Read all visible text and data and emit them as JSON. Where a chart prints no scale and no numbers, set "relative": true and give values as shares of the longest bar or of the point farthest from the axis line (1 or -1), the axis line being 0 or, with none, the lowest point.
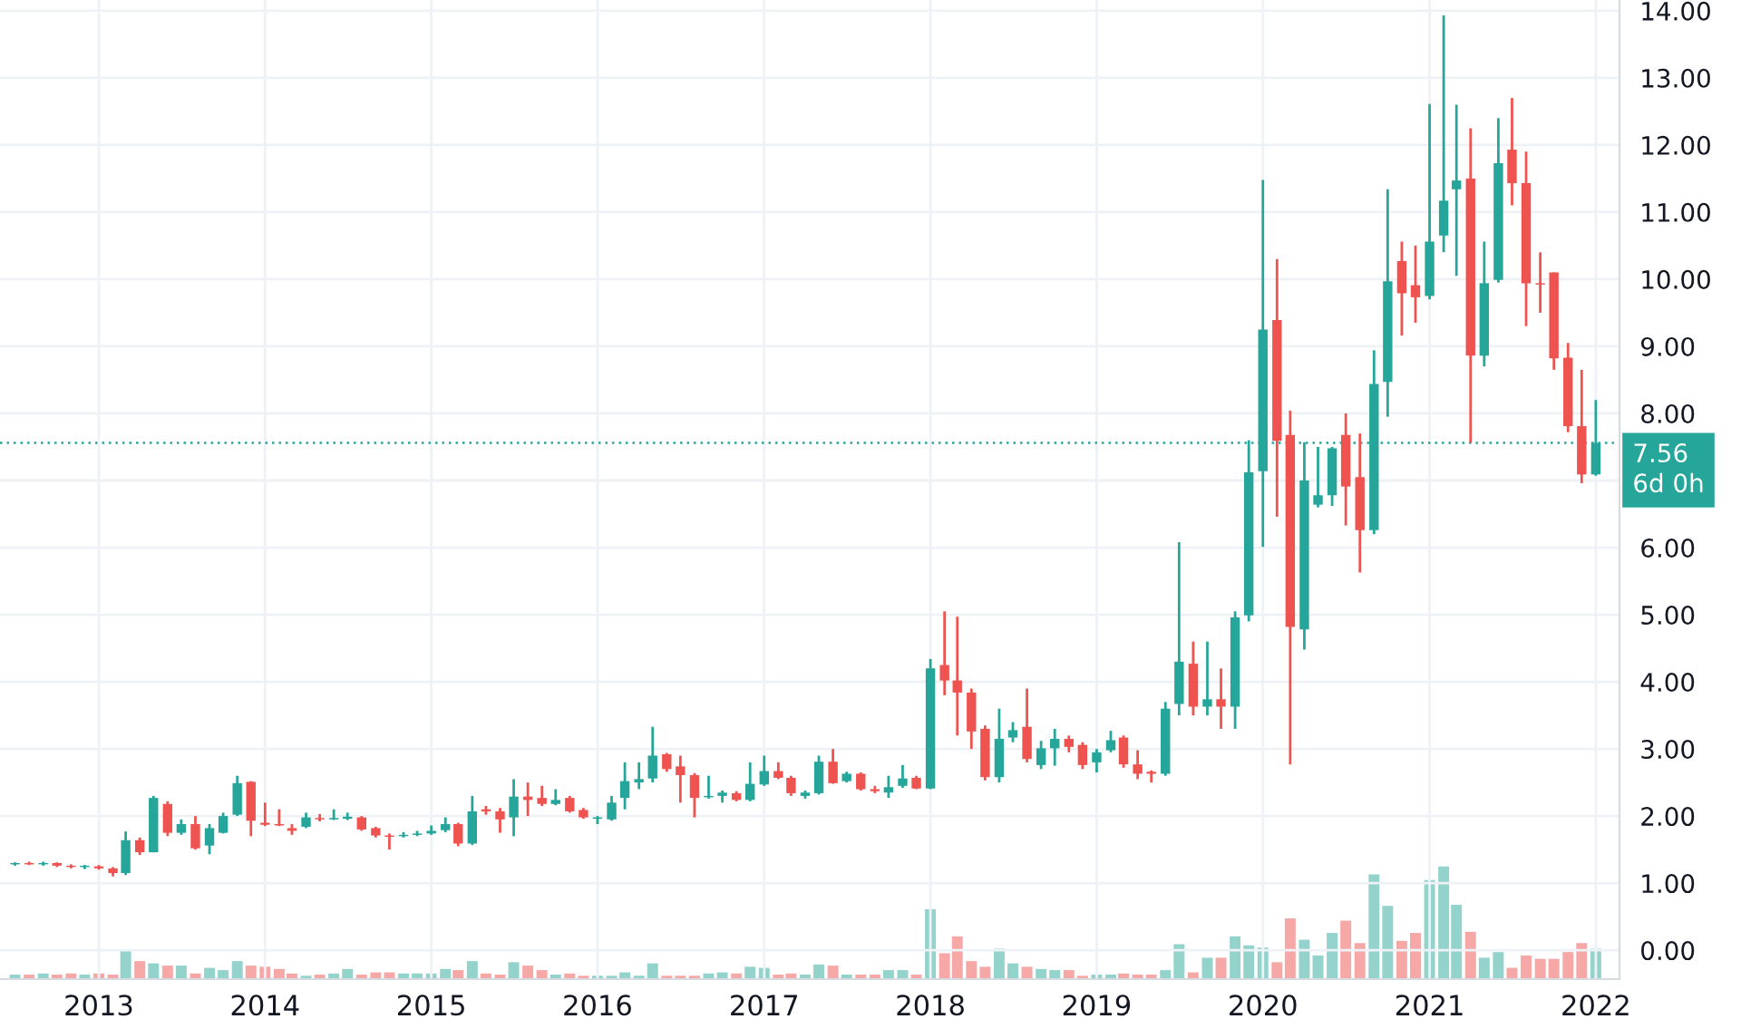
{
  "chart_data": [
    {
      "type": "candlestick",
      "grid": true,
      "x": [
        "2012-07",
        "2012-08",
        "2012-09",
        "2012-10",
        "2012-11",
        "2012-12",
        "2013-01",
        "2013-02",
        "2013-03",
        "2013-04",
        "2013-05",
        "2013-06",
        "2013-07",
        "2013-08",
        "2013-09",
        "2013-10",
        "2013-11",
        "2013-12",
        "2014-01",
        "2014-02",
        "2014-03",
        "2014-04",
        "2014-05",
        "2014-06",
        "2014-07",
        "2014-08",
        "2014-09",
        "2014-10",
        "2014-11",
        "2014-12",
        "2015-01",
        "2015-02",
        "2015-03",
        "2015-04",
        "2015-05",
        "2015-06",
        "2015-07",
        "2015-08",
        "2015-09",
        "2015-10",
        "2015-11",
        "2015-12",
        "2016-01",
        "2016-02",
        "2016-03",
        "2016-04",
        "2016-05",
        "2016-06",
        "2016-07",
        "2016-08",
        "2016-09",
        "2016-10",
        "2016-11",
        "2016-12",
        "2017-01",
        "2017-02",
        "2017-03",
        "2017-04",
        "2017-05",
        "2017-06",
        "2017-07",
        "2017-08",
        "2017-09",
        "2017-10",
        "2017-11",
        "2017-12",
        "2018-01",
        "2018-02",
        "2018-03",
        "2018-04",
        "2018-05",
        "2018-06",
        "2018-07",
        "2018-08",
        "2018-09",
        "2018-10",
        "2018-11",
        "2018-12",
        "2019-01",
        "2019-02",
        "2019-03",
        "2019-04",
        "2019-05",
        "2019-06",
        "2019-07",
        "2019-08",
        "2019-09",
        "2019-10",
        "2019-11",
        "2019-12",
        "2020-01",
        "2020-02",
        "2020-03",
        "2020-04",
        "2020-05",
        "2020-06",
        "2020-07",
        "2020-08",
        "2020-09",
        "2020-10",
        "2020-11",
        "2020-12",
        "2021-01",
        "2021-02",
        "2021-03",
        "2021-04",
        "2021-05",
        "2021-06",
        "2021-07",
        "2021-08",
        "2021-09",
        "2021-10",
        "2021-11",
        "2021-12",
        "2022-01"
      ],
      "ohlc": [
        [
          1.28,
          1.31,
          1.26,
          1.3
        ],
        [
          1.3,
          1.32,
          1.27,
          1.28
        ],
        [
          1.28,
          1.32,
          1.26,
          1.3
        ],
        [
          1.3,
          1.31,
          1.24,
          1.26
        ],
        [
          1.26,
          1.28,
          1.22,
          1.24
        ],
        [
          1.24,
          1.27,
          1.21,
          1.25
        ],
        [
          1.25,
          1.27,
          1.2,
          1.22
        ],
        [
          1.22,
          1.24,
          1.1,
          1.15
        ],
        [
          1.15,
          1.77,
          1.12,
          1.64
        ],
        [
          1.64,
          1.68,
          1.42,
          1.46
        ],
        [
          1.46,
          2.3,
          1.46,
          2.27
        ],
        [
          2.18,
          2.22,
          1.7,
          1.75
        ],
        [
          1.75,
          1.95,
          1.72,
          1.88
        ],
        [
          1.88,
          2.0,
          1.5,
          1.52
        ],
        [
          1.56,
          1.88,
          1.43,
          1.82
        ],
        [
          1.75,
          2.05,
          1.74,
          2.0
        ],
        [
          2.02,
          2.6,
          2.0,
          2.49
        ],
        [
          2.51,
          2.52,
          1.7,
          1.93
        ],
        [
          1.9,
          2.2,
          1.85,
          1.87
        ],
        [
          1.88,
          2.1,
          1.85,
          1.86
        ],
        [
          1.82,
          1.88,
          1.72,
          1.78
        ],
        [
          1.84,
          2.05,
          1.82,
          1.98
        ],
        [
          1.97,
          2.03,
          1.92,
          1.95
        ],
        [
          1.95,
          2.1,
          1.94,
          1.97
        ],
        [
          1.96,
          2.05,
          1.94,
          1.99
        ],
        [
          1.98,
          2.0,
          1.78,
          1.8
        ],
        [
          1.82,
          1.84,
          1.68,
          1.71
        ],
        [
          1.71,
          1.74,
          1.5,
          1.69
        ],
        [
          1.7,
          1.76,
          1.68,
          1.72
        ],
        [
          1.72,
          1.78,
          1.7,
          1.74
        ],
        [
          1.74,
          1.86,
          1.72,
          1.78
        ],
        [
          1.79,
          1.98,
          1.76,
          1.88
        ],
        [
          1.88,
          1.9,
          1.55,
          1.59
        ],
        [
          1.59,
          2.3,
          1.57,
          2.07
        ],
        [
          2.1,
          2.15,
          2.02,
          2.07
        ],
        [
          2.07,
          2.12,
          1.75,
          1.95
        ],
        [
          1.98,
          2.55,
          1.7,
          2.29
        ],
        [
          2.29,
          2.5,
          2.0,
          2.24
        ],
        [
          2.27,
          2.45,
          2.15,
          2.18
        ],
        [
          2.18,
          2.4,
          2.16,
          2.24
        ],
        [
          2.27,
          2.3,
          2.05,
          2.07
        ],
        [
          2.09,
          2.12,
          1.96,
          1.98
        ],
        [
          1.96,
          2.0,
          1.88,
          1.97
        ],
        [
          1.95,
          2.3,
          1.93,
          2.2
        ],
        [
          2.27,
          2.8,
          2.1,
          2.52
        ],
        [
          2.5,
          2.8,
          2.4,
          2.55
        ],
        [
          2.56,
          3.33,
          2.5,
          2.9
        ],
        [
          2.92,
          2.94,
          2.66,
          2.7
        ],
        [
          2.74,
          2.9,
          2.2,
          2.61
        ],
        [
          2.61,
          2.64,
          1.98,
          2.27
        ],
        [
          2.28,
          2.6,
          2.26,
          2.3
        ],
        [
          2.3,
          2.38,
          2.2,
          2.35
        ],
        [
          2.34,
          2.37,
          2.22,
          2.24
        ],
        [
          2.24,
          2.8,
          2.22,
          2.48
        ],
        [
          2.47,
          2.9,
          2.45,
          2.67
        ],
        [
          2.67,
          2.8,
          2.55,
          2.57
        ],
        [
          2.57,
          2.6,
          2.3,
          2.34
        ],
        [
          2.3,
          2.38,
          2.26,
          2.35
        ],
        [
          2.34,
          2.9,
          2.32,
          2.81
        ],
        [
          2.81,
          3.0,
          2.48,
          2.49
        ],
        [
          2.52,
          2.66,
          2.5,
          2.63
        ],
        [
          2.63,
          2.65,
          2.38,
          2.4
        ],
        [
          2.4,
          2.45,
          2.34,
          2.37
        ],
        [
          2.35,
          2.6,
          2.27,
          2.43
        ],
        [
          2.45,
          2.76,
          2.42,
          2.56
        ],
        [
          2.57,
          2.6,
          2.4,
          2.41
        ],
        [
          2.41,
          4.34,
          2.4,
          4.2
        ],
        [
          4.25,
          5.05,
          3.8,
          4.02
        ],
        [
          4.02,
          4.97,
          3.2,
          3.84
        ],
        [
          3.84,
          3.9,
          3.0,
          3.26
        ],
        [
          3.3,
          3.35,
          2.53,
          2.58
        ],
        [
          2.58,
          3.6,
          2.5,
          3.15
        ],
        [
          3.17,
          3.4,
          3.1,
          3.28
        ],
        [
          3.33,
          3.9,
          2.8,
          2.85
        ],
        [
          2.76,
          3.12,
          2.7,
          3.01
        ],
        [
          3.01,
          3.3,
          2.75,
          3.15
        ],
        [
          3.15,
          3.2,
          2.95,
          3.03
        ],
        [
          3.06,
          3.1,
          2.7,
          2.76
        ],
        [
          2.8,
          3.0,
          2.65,
          2.95
        ],
        [
          2.98,
          3.27,
          2.95,
          3.13
        ],
        [
          3.17,
          3.2,
          2.72,
          2.77
        ],
        [
          2.77,
          2.98,
          2.55,
          2.63
        ],
        [
          2.66,
          2.68,
          2.5,
          2.63
        ],
        [
          2.63,
          3.7,
          2.6,
          3.6
        ],
        [
          3.67,
          6.08,
          3.5,
          4.3
        ],
        [
          4.27,
          4.6,
          3.5,
          3.63
        ],
        [
          3.63,
          4.6,
          3.5,
          3.74
        ],
        [
          3.74,
          4.2,
          3.3,
          3.63
        ],
        [
          3.63,
          5.05,
          3.3,
          4.96
        ],
        [
          4.99,
          7.6,
          4.9,
          7.12
        ],
        [
          7.14,
          11.48,
          6.01,
          9.25
        ],
        [
          9.39,
          10.3,
          6.46,
          7.59
        ],
        [
          7.68,
          8.04,
          2.77,
          4.82
        ],
        [
          4.78,
          7.57,
          4.48,
          7.0
        ],
        [
          6.64,
          7.5,
          6.6,
          6.78
        ],
        [
          6.78,
          7.5,
          6.62,
          7.48
        ],
        [
          7.68,
          8.0,
          6.33,
          6.91
        ],
        [
          7.05,
          7.7,
          5.63,
          6.26
        ],
        [
          6.26,
          8.94,
          6.2,
          8.44
        ],
        [
          8.47,
          11.34,
          7.95,
          9.97
        ],
        [
          10.27,
          10.56,
          9.16,
          9.79
        ],
        [
          9.91,
          10.5,
          9.35,
          9.73
        ],
        [
          9.75,
          12.61,
          9.7,
          10.56
        ],
        [
          10.65,
          13.93,
          10.4,
          11.17
        ],
        [
          11.34,
          12.6,
          10.05,
          11.47
        ],
        [
          11.5,
          12.25,
          7.56,
          8.86
        ],
        [
          8.86,
          10.56,
          8.7,
          9.94
        ],
        [
          9.99,
          12.4,
          9.95,
          11.73
        ],
        [
          11.93,
          12.7,
          11.1,
          11.43
        ],
        [
          11.43,
          11.9,
          9.3,
          9.94
        ],
        [
          9.94,
          10.4,
          9.5,
          9.92
        ],
        [
          10.1,
          10.1,
          8.65,
          8.82
        ],
        [
          8.83,
          9.05,
          7.72,
          7.81
        ],
        [
          7.81,
          8.65,
          6.96,
          7.09
        ],
        [
          7.09,
          8.2,
          7.07,
          7.56
        ]
      ],
      "colors": [
        "#26a69a",
        "#ef5350",
        "#26a69a",
        "#ef5350",
        "#ef5350",
        "#26a69a",
        "#ef5350",
        "#ef5350",
        "#26a69a",
        "#ef5350",
        "#26a69a",
        "#ef5350",
        "#26a69a",
        "#ef5350",
        "#26a69a",
        "#26a69a",
        "#26a69a",
        "#ef5350",
        "#ef5350",
        "#ef5350",
        "#ef5350",
        "#26a69a",
        "#ef5350",
        "#26a69a",
        "#26a69a",
        "#ef5350",
        "#ef5350",
        "#ef5350",
        "#26a69a",
        "#26a69a",
        "#26a69a",
        "#26a69a",
        "#ef5350",
        "#26a69a",
        "#ef5350",
        "#ef5350",
        "#26a69a",
        "#ef5350",
        "#ef5350",
        "#26a69a",
        "#ef5350",
        "#ef5350",
        "#26a69a",
        "#26a69a",
        "#26a69a",
        "#26a69a",
        "#26a69a",
        "#ef5350",
        "#ef5350",
        "#ef5350",
        "#26a69a",
        "#26a69a",
        "#ef5350",
        "#26a69a",
        "#26a69a",
        "#ef5350",
        "#ef5350",
        "#26a69a",
        "#26a69a",
        "#ef5350",
        "#26a69a",
        "#ef5350",
        "#ef5350",
        "#26a69a",
        "#26a69a",
        "#ef5350",
        "#26a69a",
        "#ef5350",
        "#ef5350",
        "#ef5350",
        "#ef5350",
        "#26a69a",
        "#26a69a",
        "#ef5350",
        "#26a69a",
        "#26a69a",
        "#ef5350",
        "#ef5350",
        "#26a69a",
        "#26a69a",
        "#ef5350",
        "#ef5350",
        "#ef5350",
        "#26a69a",
        "#26a69a",
        "#ef5350",
        "#26a69a",
        "#ef5350",
        "#26a69a",
        "#26a69a",
        "#26a69a",
        "#ef5350",
        "#ef5350",
        "#26a69a",
        "#26a69a",
        "#26a69a",
        "#ef5350",
        "#ef5350",
        "#26a69a",
        "#26a69a",
        "#ef5350",
        "#ef5350",
        "#26a69a",
        "#26a69a",
        "#26a69a",
        "#ef5350",
        "#26a69a",
        "#26a69a",
        "#ef5350",
        "#ef5350",
        "#ef5350",
        "#ef5350",
        "#ef5350",
        "#ef5350",
        "#26a69a"
      ],
      "xlim": [
        "2012-05-29",
        "2022-02-22"
      ],
      "xticks": [
        {
          "value": "2013-01",
          "label": "2013"
        },
        {
          "value": "2014-01",
          "label": "2014"
        },
        {
          "value": "2015-01",
          "label": "2015"
        },
        {
          "value": "2016-01",
          "label": "2016"
        },
        {
          "value": "2017-01",
          "label": "2017"
        },
        {
          "value": "2018-01",
          "label": "2018"
        },
        {
          "value": "2019-01",
          "label": "2019"
        },
        {
          "value": "2020-01",
          "label": "2020"
        },
        {
          "value": "2021-01",
          "label": "2021"
        },
        {
          "value": "2022-01",
          "label": "2022"
        }
      ],
      "ylim": [
        -0.43,
        14.16
      ],
      "yticks": [
        {
          "value": 0,
          "label": "0.00"
        },
        {
          "value": 1,
          "label": "1.00"
        },
        {
          "value": 2,
          "label": "2.00"
        },
        {
          "value": 3,
          "label": "3.00"
        },
        {
          "value": 4,
          "label": "4.00"
        },
        {
          "value": 5,
          "label": "5.00"
        },
        {
          "value": 6,
          "label": "6.00"
        },
        {
          "value": 7,
          "label": null
        },
        {
          "value": 8,
          "label": "8.00"
        },
        {
          "value": 9,
          "label": "9.00"
        },
        {
          "value": 10,
          "label": "10.00"
        },
        {
          "value": 11,
          "label": "11.00"
        },
        {
          "value": 12,
          "label": "12.00"
        },
        {
          "value": 13,
          "label": "13.00"
        },
        {
          "value": 14,
          "label": "14.00"
        }
      ],
      "ref_lines": [
        {
          "axis": "y",
          "value": 7.56,
          "label": "7.56\n6d 0h",
          "color": "#26a69a",
          "line_style": "dotted"
        }
      ]
    },
    {
      "type": "bar",
      "relative": true,
      "tick_labels": false,
      "xlim": [
        "2012-05-29",
        "2022-02-22"
      ],
      "x": [
        "2012-07",
        "2012-08",
        "2012-09",
        "2012-10",
        "2012-11",
        "2012-12",
        "2013-01",
        "2013-02",
        "2013-03",
        "2013-04",
        "2013-05",
        "2013-06",
        "2013-07",
        "2013-08",
        "2013-09",
        "2013-10",
        "2013-11",
        "2013-12",
        "2014-01",
        "2014-02",
        "2014-03",
        "2014-04",
        "2014-05",
        "2014-06",
        "2014-07",
        "2014-08",
        "2014-09",
        "2014-10",
        "2014-11",
        "2014-12",
        "2015-01",
        "2015-02",
        "2015-03",
        "2015-04",
        "2015-05",
        "2015-06",
        "2015-07",
        "2015-08",
        "2015-09",
        "2015-10",
        "2015-11",
        "2015-12",
        "2016-01",
        "2016-02",
        "2016-03",
        "2016-04",
        "2016-05",
        "2016-06",
        "2016-07",
        "2016-08",
        "2016-09",
        "2016-10",
        "2016-11",
        "2016-12",
        "2017-01",
        "2017-02",
        "2017-03",
        "2017-04",
        "2017-05",
        "2017-06",
        "2017-07",
        "2017-08",
        "2017-09",
        "2017-10",
        "2017-11",
        "2017-12",
        "2018-01",
        "2018-02",
        "2018-03",
        "2018-04",
        "2018-05",
        "2018-06",
        "2018-07",
        "2018-08",
        "2018-09",
        "2018-10",
        "2018-11",
        "2018-12",
        "2019-01",
        "2019-02",
        "2019-03",
        "2019-04",
        "2019-05",
        "2019-06",
        "2019-07",
        "2019-08",
        "2019-09",
        "2019-10",
        "2019-11",
        "2019-12",
        "2020-01",
        "2020-02",
        "2020-03",
        "2020-04",
        "2020-05",
        "2020-06",
        "2020-07",
        "2020-08",
        "2020-09",
        "2020-10",
        "2020-11",
        "2020-12",
        "2021-01",
        "2021-02",
        "2021-03",
        "2021-04",
        "2021-05",
        "2021-06",
        "2021-07",
        "2021-08",
        "2021-09",
        "2021-10",
        "2021-11",
        "2021-12",
        "2022-01"
      ],
      "values": [
        0.04,
        0.04,
        0.05,
        0.04,
        0.05,
        0.04,
        0.05,
        0.04,
        0.25,
        0.16,
        0.14,
        0.12,
        0.12,
        0.05,
        0.1,
        0.08,
        0.16,
        0.12,
        0.11,
        0.09,
        0.05,
        0.03,
        0.04,
        0.05,
        0.09,
        0.04,
        0.06,
        0.06,
        0.05,
        0.05,
        0.05,
        0.09,
        0.08,
        0.16,
        0.05,
        0.04,
        0.15,
        0.12,
        0.08,
        0.04,
        0.05,
        0.03,
        0.03,
        0.03,
        0.06,
        0.03,
        0.14,
        0.03,
        0.03,
        0.03,
        0.05,
        0.06,
        0.05,
        0.11,
        0.1,
        0.04,
        0.05,
        0.04,
        0.13,
        0.12,
        0.04,
        0.04,
        0.04,
        0.08,
        0.08,
        0.04,
        0.62,
        0.23,
        0.38,
        0.16,
        0.11,
        0.27,
        0.14,
        0.11,
        0.09,
        0.08,
        0.08,
        0.03,
        0.04,
        0.04,
        0.05,
        0.04,
        0.04,
        0.08,
        0.31,
        0.06,
        0.19,
        0.19,
        0.38,
        0.3,
        0.28,
        0.15,
        0.54,
        0.35,
        0.21,
        0.41,
        0.52,
        0.32,
        0.93,
        0.65,
        0.34,
        0.41,
        0.88,
        1,
        0.66,
        0.42,
        0.19,
        0.24,
        0.1,
        0.21,
        0.18,
        0.18,
        0.24,
        0.32,
        0.27
      ],
      "colors": [
        "#93d3cc",
        "#f5a8a6",
        "#93d3cc",
        "#f5a8a6",
        "#f5a8a6",
        "#93d3cc",
        "#f5a8a6",
        "#f5a8a6",
        "#93d3cc",
        "#f5a8a6",
        "#93d3cc",
        "#f5a8a6",
        "#93d3cc",
        "#f5a8a6",
        "#93d3cc",
        "#93d3cc",
        "#93d3cc",
        "#f5a8a6",
        "#f5a8a6",
        "#f5a8a6",
        "#f5a8a6",
        "#93d3cc",
        "#f5a8a6",
        "#93d3cc",
        "#93d3cc",
        "#f5a8a6",
        "#f5a8a6",
        "#f5a8a6",
        "#93d3cc",
        "#93d3cc",
        "#93d3cc",
        "#93d3cc",
        "#f5a8a6",
        "#93d3cc",
        "#f5a8a6",
        "#f5a8a6",
        "#93d3cc",
        "#f5a8a6",
        "#f5a8a6",
        "#93d3cc",
        "#f5a8a6",
        "#f5a8a6",
        "#93d3cc",
        "#93d3cc",
        "#93d3cc",
        "#93d3cc",
        "#93d3cc",
        "#f5a8a6",
        "#f5a8a6",
        "#f5a8a6",
        "#93d3cc",
        "#93d3cc",
        "#f5a8a6",
        "#93d3cc",
        "#93d3cc",
        "#f5a8a6",
        "#f5a8a6",
        "#93d3cc",
        "#93d3cc",
        "#f5a8a6",
        "#93d3cc",
        "#f5a8a6",
        "#f5a8a6",
        "#93d3cc",
        "#93d3cc",
        "#f5a8a6",
        "#93d3cc",
        "#f5a8a6",
        "#f5a8a6",
        "#f5a8a6",
        "#f5a8a6",
        "#93d3cc",
        "#93d3cc",
        "#f5a8a6",
        "#93d3cc",
        "#93d3cc",
        "#f5a8a6",
        "#f5a8a6",
        "#93d3cc",
        "#93d3cc",
        "#f5a8a6",
        "#f5a8a6",
        "#f5a8a6",
        "#93d3cc",
        "#93d3cc",
        "#f5a8a6",
        "#93d3cc",
        "#f5a8a6",
        "#93d3cc",
        "#93d3cc",
        "#93d3cc",
        "#f5a8a6",
        "#f5a8a6",
        "#93d3cc",
        "#93d3cc",
        "#93d3cc",
        "#f5a8a6",
        "#f5a8a6",
        "#93d3cc",
        "#93d3cc",
        "#f5a8a6",
        "#f5a8a6",
        "#93d3cc",
        "#93d3cc",
        "#93d3cc",
        "#f5a8a6",
        "#93d3cc",
        "#93d3cc",
        "#f5a8a6",
        "#f5a8a6",
        "#f5a8a6",
        "#f5a8a6",
        "#f5a8a6",
        "#f5a8a6",
        "#93d3cc"
      ]
    }
  ]
}
